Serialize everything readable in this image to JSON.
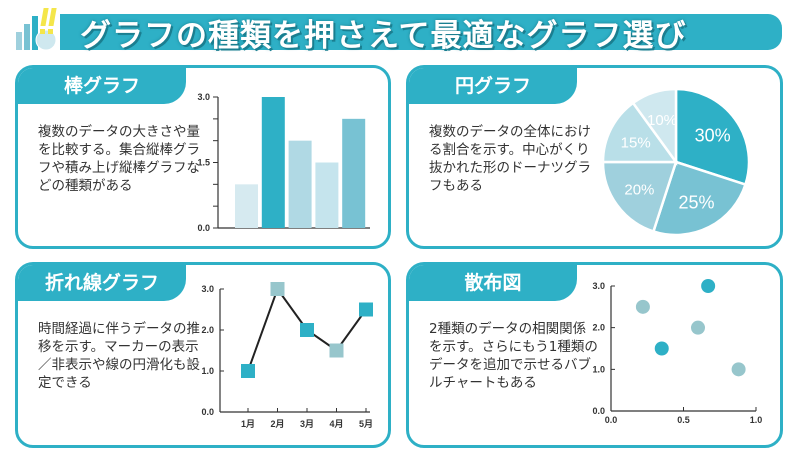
{
  "header": {
    "title": "グラフの種類を押さえて最適なグラフ選び",
    "logo_icon": "chart-exclamation-icon"
  },
  "colors": {
    "accent": "#2eb0c6",
    "marker_alt": "#97c6cc",
    "pie": [
      "#2eb0c6",
      "#78c2d3",
      "#9fd0dd",
      "#b9dfe8",
      "#cfe8ef"
    ],
    "bars": [
      "#d6eaf0",
      "#2eb0c6",
      "#b0d9e4",
      "#c5e4ed",
      "#78c2d3"
    ]
  },
  "panels": [
    {
      "title": "棒グラフ",
      "description": "複数のデータの大きさや量を比較する。集合縦棒グラフや積み上げ縦棒グラフなどの種類がある"
    },
    {
      "title": "円グラフ",
      "description": "複数のデータの全体における割合を示す。中心がくり抜かれた形のドーナツグラフもある"
    },
    {
      "title": "折れ線グラフ",
      "description": "時間経過に伴うデータの推移を示す。マーカーの表示／非表示や線の円滑化も設定できる"
    },
    {
      "title": "散布図",
      "description": "2種類のデータの相関関係を示す。さらにもう1種類のデータを追加で示せるバブルチャートもある"
    }
  ],
  "chart_data": [
    {
      "type": "bar",
      "values": [
        1.0,
        3.0,
        2.0,
        1.5,
        2.5
      ],
      "ylim": [
        0,
        3
      ],
      "yticks": [
        "0.0",
        "1.5",
        "3.0"
      ]
    },
    {
      "type": "pie",
      "values": [
        30,
        25,
        20,
        15,
        10
      ],
      "labels": [
        "30%",
        "25%",
        "20%",
        "15%",
        "10%"
      ]
    },
    {
      "type": "line",
      "categories": [
        "1月",
        "2月",
        "3月",
        "4月",
        "5月"
      ],
      "values": [
        1.0,
        3.0,
        2.0,
        1.5,
        2.5
      ],
      "ylim": [
        0,
        3
      ],
      "yticks": [
        "0.0",
        "1.0",
        "2.0",
        "3.0"
      ],
      "marker_colors": [
        "accent",
        "alt",
        "accent",
        "alt",
        "accent"
      ]
    },
    {
      "type": "scatter",
      "x": [
        0.22,
        0.67,
        0.6,
        0.35,
        0.88
      ],
      "y": [
        2.5,
        3.0,
        2.0,
        1.5,
        1.0
      ],
      "colors": [
        "alt",
        "accent",
        "alt",
        "accent",
        "alt"
      ],
      "xlim": [
        0,
        1
      ],
      "ylim": [
        0,
        3
      ],
      "xticks": [
        "0.0",
        "0.5",
        "1.0"
      ],
      "yticks": [
        "0.0",
        "1.0",
        "2.0",
        "3.0"
      ]
    }
  ]
}
